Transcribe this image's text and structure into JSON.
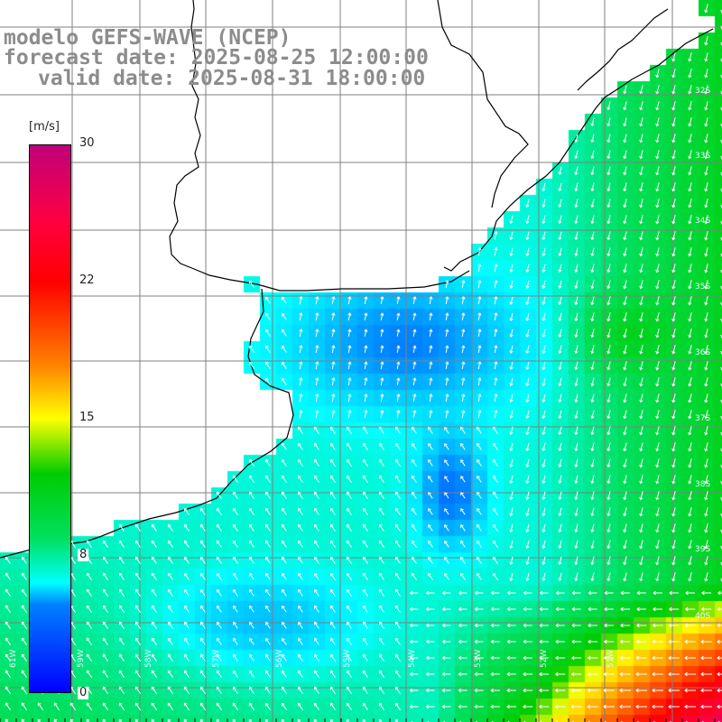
{
  "title": {
    "line1": "modelo GEFS-WAVE (NCEP)",
    "line2": "forecast date: 2025-08-25 12:00:00",
    "line3": "valid date: 2025-08-31 18:00:00"
  },
  "colorbar": {
    "unit": "[m/s]",
    "min": 0,
    "max": 30,
    "ticks": [
      "30",
      "22",
      "15",
      "8",
      "0"
    ],
    "tick_values": [
      30,
      22,
      15,
      8,
      0
    ],
    "colors": [
      "#0000ff",
      "#0080ff",
      "#00ffff",
      "#00e060",
      "#00cc00",
      "#ffff00",
      "#ff8000",
      "#ff0000",
      "#ff0040",
      "#c0007a"
    ]
  },
  "map": {
    "variable": "wind speed and direction",
    "lon_labels": [
      "61W",
      "59W",
      "58W",
      "57W",
      "56W",
      "55W",
      "54W",
      "53W",
      "52W",
      "51W"
    ],
    "lat_labels": [
      "32S",
      "33S",
      "34S",
      "35S",
      "36S",
      "37S",
      "38S",
      "39S",
      "40S"
    ],
    "grid_color": "#808080",
    "coast_color": "#000000",
    "arrow_color": "#ffffff"
  }
}
